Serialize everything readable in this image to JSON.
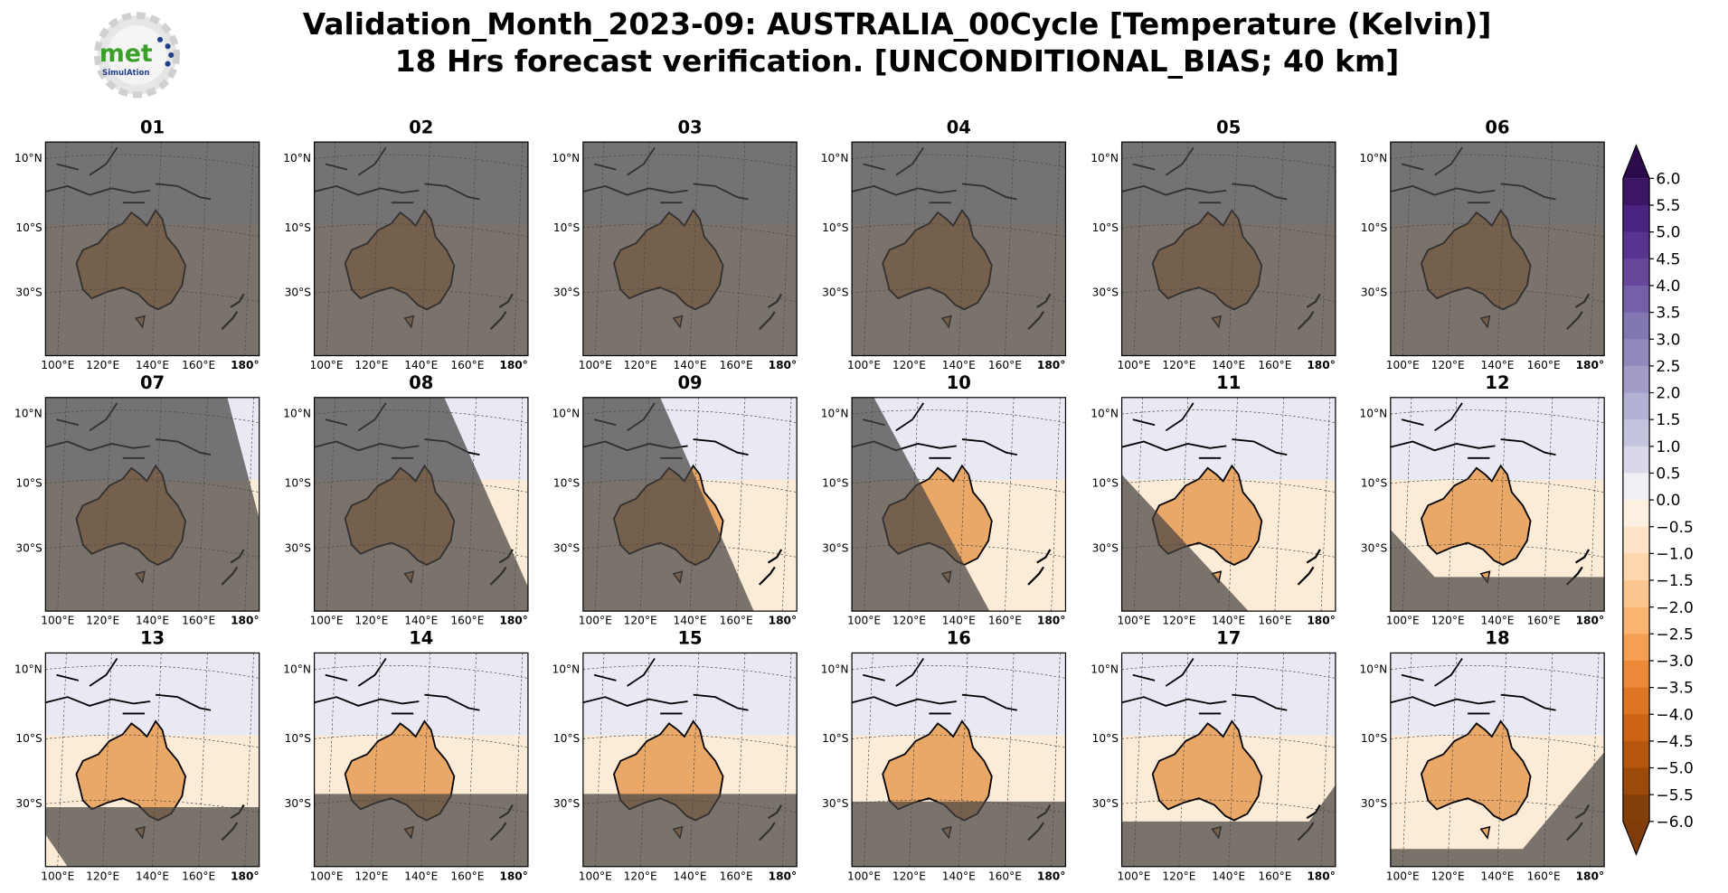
{
  "header": {
    "title_line1": "Validation_Month_2023-09: AUSTRALIA_00Cycle [Temperature (Kelvin)]",
    "title_line2": "18 Hrs forecast verification. [UNCONDITIONAL_BIAS; 40 km]"
  },
  "logo": {
    "text": "met",
    "subtext": "SimulAtion"
  },
  "map_panels": {
    "titles": [
      "01",
      "02",
      "03",
      "04",
      "05",
      "06",
      "07",
      "08",
      "09",
      "10",
      "11",
      "12",
      "13",
      "14",
      "15",
      "16",
      "17",
      "18"
    ],
    "lat_labels": [
      "10°N",
      "10°S",
      "30°S"
    ],
    "lon_labels": [
      "100°E",
      "120°E",
      "140°E",
      "160°E",
      "180°"
    ]
  },
  "colorbar": {
    "ticks": [
      {
        "value": 6,
        "label": "6.0"
      },
      {
        "value": 5.5,
        "label": "5.5"
      },
      {
        "value": 5,
        "label": "5.0"
      },
      {
        "value": 4.5,
        "label": "4.5"
      },
      {
        "value": 4,
        "label": "4.0"
      },
      {
        "value": 3.5,
        "label": "3.5"
      },
      {
        "value": 3,
        "label": "3.0"
      },
      {
        "value": 2.5,
        "label": "2.5"
      },
      {
        "value": 2,
        "label": "2.0"
      },
      {
        "value": 1.5,
        "label": "1.5"
      },
      {
        "value": 1,
        "label": "1.0"
      },
      {
        "value": 0.5,
        "label": "0.5"
      },
      {
        "value": 0,
        "label": "0.0"
      },
      {
        "value": -0.5,
        "label": "−0.5"
      },
      {
        "value": -1,
        "label": "−1.0"
      },
      {
        "value": -1.5,
        "label": "−1.5"
      },
      {
        "value": -2,
        "label": "−2.0"
      },
      {
        "value": -2.5,
        "label": "−2.5"
      },
      {
        "value": -3,
        "label": "−3.0"
      },
      {
        "value": -3.5,
        "label": "−3.5"
      },
      {
        "value": -4,
        "label": "−4.0"
      },
      {
        "value": -4.5,
        "label": "−4.5"
      },
      {
        "value": -5,
        "label": "−5.0"
      },
      {
        "value": -5.5,
        "label": "−5.5"
      },
      {
        "value": -6,
        "label": "−6.0"
      }
    ],
    "colors": [
      "#3d1565",
      "#4b2481",
      "#58338f",
      "#66479c",
      "#7460a8",
      "#8276b3",
      "#9189bd",
      "#a19dc8",
      "#b3b1d4",
      "#c5c4df",
      "#d9d8ea",
      "#f0f0f4",
      "#fdf0e0",
      "#fee3c6",
      "#fed6ab",
      "#fdc58e",
      "#fbb472",
      "#f59f55",
      "#ec8a3a",
      "#dd7624",
      "#cb6414",
      "#b4560d",
      "#9c4a0a",
      "#833f08"
    ],
    "over_color": "#2d0a4e",
    "under_color": "#7f3b08"
  }
}
